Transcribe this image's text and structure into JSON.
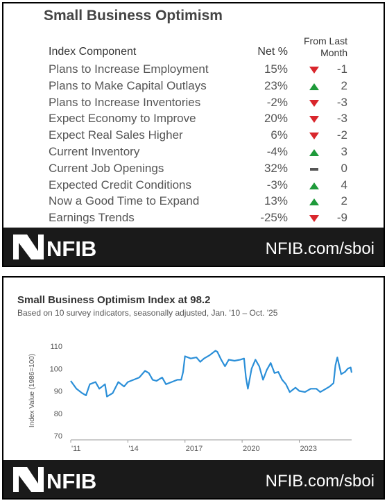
{
  "table": {
    "title": "Small Business Optimism",
    "headers": [
      "Index Component",
      "Net %",
      "From Last Month"
    ],
    "rows": [
      [
        "Plans to Increase Employment",
        "15%",
        "-1"
      ],
      [
        "Plans to Make Capital Outlays",
        "23%",
        "2"
      ],
      [
        "Plans to Increase Inventories",
        "-2%",
        "-3"
      ],
      [
        "Expect Economy to Improve",
        "20%",
        "-3"
      ],
      [
        "Expect Real Sales Higher",
        "6%",
        "-2"
      ],
      [
        "Current Inventory",
        "-4%",
        "3"
      ],
      [
        "Current Job Openings",
        "32%",
        "0"
      ],
      [
        "Expected Credit Conditions",
        "-3%",
        "4"
      ],
      [
        "Now a Good Time to Expand",
        "13%",
        "2"
      ],
      [
        "Earnings Trends",
        "-25%",
        "-9"
      ]
    ]
  },
  "footer": {
    "brand": "NFIB",
    "url": "NFIB.com/sboi"
  },
  "chart_data": {
    "type": "line",
    "title": "Small Business Optimism Index at 98.2",
    "subtitle": "Based on 10 survey indicators, seasonally adjusted,  Jan. '10 – Oct. '25",
    "y_label": "Index Value (1986=100)",
    "x": [
      2011.0,
      2011.3,
      2011.6,
      2011.8,
      2012.0,
      2012.3,
      2012.5,
      2012.8,
      2012.9,
      2013.2,
      2013.5,
      2013.8,
      2014.0,
      2014.3,
      2014.6,
      2014.9,
      2015.1,
      2015.3,
      2015.5,
      2015.8,
      2016.0,
      2016.3,
      2016.6,
      2016.8,
      2016.9,
      2017.0,
      2017.3,
      2017.6,
      2017.8,
      2018.0,
      2018.3,
      2018.6,
      2018.7,
      2018.9,
      2019.1,
      2019.3,
      2019.6,
      2019.9,
      2020.1,
      2020.2,
      2020.3,
      2020.5,
      2020.7,
      2020.9,
      2021.1,
      2021.3,
      2021.5,
      2021.7,
      2021.9,
      2022.1,
      2022.3,
      2022.5,
      2022.8,
      2023.0,
      2023.3,
      2023.6,
      2023.9,
      2024.1,
      2024.3,
      2024.6,
      2024.8,
      2024.9,
      2025.0,
      2025.2,
      2025.4,
      2025.55,
      2025.7,
      2025.75
    ],
    "series": [
      {
        "name": "Small Business Optimism Index",
        "color": "#2b8fd8",
        "values": [
          94.5,
          91,
          89,
          88,
          93,
          94,
          91,
          93,
          87.5,
          89,
          94,
          92,
          94,
          95,
          96,
          99,
          98,
          95,
          94.5,
          96,
          93,
          94,
          95,
          95,
          98.5,
          105.5,
          104.5,
          105,
          103,
          104.5,
          106,
          108,
          107.5,
          104,
          101,
          104,
          103.5,
          104,
          104.5,
          96,
          91,
          100,
          104,
          101,
          95,
          99.5,
          102.5,
          98,
          98.5,
          95,
          93,
          89.5,
          91.5,
          90,
          89.5,
          91,
          91,
          89.5,
          90.5,
          92,
          93.5,
          101.5,
          105,
          97.5,
          98.5,
          100,
          100.5,
          98.2
        ]
      }
    ],
    "xlim": [
      2011,
      2025.75
    ],
    "xticks": [
      {
        "value": 2011,
        "label": "'11"
      },
      {
        "value": 2014,
        "label": "'14"
      },
      2017,
      2020,
      2023
    ],
    "xtick_labels_short": null,
    "ylim": [
      70,
      110
    ],
    "yticks": [
      70,
      80,
      90,
      100,
      110
    ],
    "grid": false
  }
}
